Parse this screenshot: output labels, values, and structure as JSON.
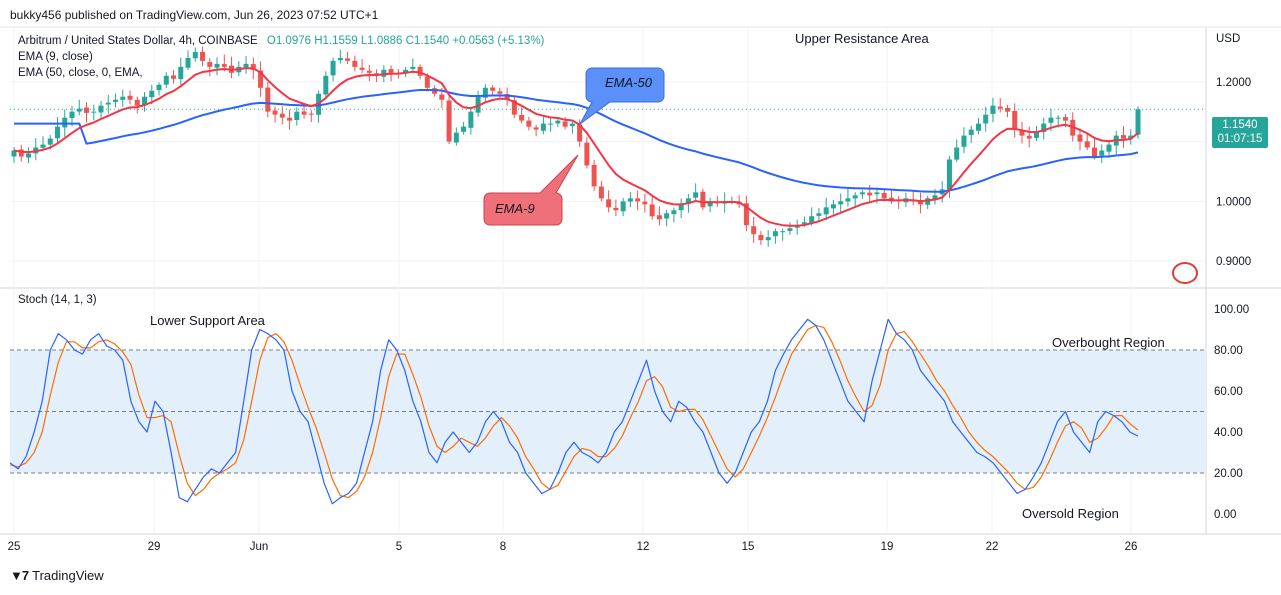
{
  "header": {
    "publisher": "bukky456 published on TradingView.com, Jun 26, 2023 07:52 UTC+1"
  },
  "legend": {
    "symbol": "Arbitrum / United States Dollar, 4h, COINBASE",
    "ohlc": "O1.0976  H1.1559  L1.0886  C1.1540  +0.0563 (+5.13%)",
    "ema9": "EMA (9, close)",
    "ema50": "EMA (50, close, 0, EMA,",
    "stoch": "Stoch (14, 1, 3)"
  },
  "currency": "USD",
  "last_price": "1.1540",
  "countdown": "01:07:15",
  "annotations": {
    "upper_resistance": "Upper Resistance Area",
    "lower_support": "Lower Support Area",
    "overbought": "Overbought Region",
    "oversold": "Oversold Region",
    "ema50_callout": "EMA-50",
    "ema9_callout": "EMA-9"
  },
  "footer": {
    "brand": "TradingView",
    "logo_icon": "tradingview-logo-icon"
  },
  "colors": {
    "bull": "#26a69a",
    "bear": "#ef5350",
    "ema9": "#f23645",
    "ema50": "#2962ff",
    "stoch_k": "#2962ff",
    "stoch_d": "#ff6d00",
    "ema50_callout_bg": "#5b8ff9",
    "ema9_callout_bg": "#f0707a",
    "stoch_band": "#e3f0fb"
  },
  "chart_data": {
    "type": "candlestick",
    "title": "Arbitrum / United States Dollar, 4h, COINBASE",
    "price_axis": {
      "label": "USD",
      "ticks": [
        "1.2000",
        "1.1000",
        "1.0000",
        "0.9000"
      ],
      "range": [
        0.86,
        1.29
      ]
    },
    "time_axis": {
      "ticks": [
        "25",
        "29",
        "Jun",
        "5",
        "8",
        "12",
        "15",
        "19",
        "22",
        "26"
      ]
    },
    "candles_close": [
      1.085,
      1.075,
      1.08,
      1.09,
      1.095,
      1.105,
      1.125,
      1.14,
      1.15,
      1.155,
      1.148,
      1.15,
      1.16,
      1.165,
      1.17,
      1.175,
      1.17,
      1.16,
      1.175,
      1.185,
      1.195,
      1.21,
      1.205,
      1.225,
      1.24,
      1.25,
      1.235,
      1.225,
      1.23,
      1.225,
      1.215,
      1.225,
      1.23,
      1.22,
      1.19,
      1.15,
      1.145,
      1.14,
      1.135,
      1.15,
      1.145,
      1.145,
      1.18,
      1.21,
      1.235,
      1.24,
      1.235,
      1.225,
      1.22,
      1.215,
      1.21,
      1.22,
      1.215,
      1.215,
      1.22,
      1.225,
      1.21,
      1.19,
      1.18,
      1.17,
      1.1,
      1.115,
      1.125,
      1.15,
      1.175,
      1.19,
      1.185,
      1.18,
      1.17,
      1.145,
      1.135,
      1.125,
      1.12,
      1.13,
      1.13,
      1.135,
      1.125,
      1.13,
      1.1,
      1.06,
      1.025,
      1.005,
      0.99,
      0.985,
      1.0,
      1.005,
      1.0,
      0.995,
      0.975,
      0.97,
      0.98,
      0.985,
      0.995,
      1.005,
      1.015,
      0.99,
      1.0,
      0.998,
      1.0,
      1.0,
      0.995,
      0.96,
      0.945,
      0.935,
      0.94,
      0.95,
      0.95,
      0.955,
      0.96,
      0.965,
      0.975,
      0.98,
      0.99,
      0.995,
      1.0,
      1.005,
      1.01,
      1.015,
      1.01,
      1.015,
      1.005,
      1.0,
      1.0,
      1.005,
      1.0,
      0.995,
      1.005,
      1.01,
      1.02,
      1.07,
      1.09,
      1.11,
      1.12,
      1.13,
      1.145,
      1.16,
      1.155,
      1.15,
      1.12,
      1.11,
      1.105,
      1.115,
      1.13,
      1.14,
      1.14,
      1.135,
      1.11,
      1.1,
      1.09,
      1.075,
      1.085,
      1.095,
      1.11,
      1.105,
      1.11,
      1.154
    ],
    "stoch": {
      "name": "Stoch (14, 1, 3)",
      "y_ticks": [
        "100.00",
        "80.00",
        "60.00",
        "40.00",
        "20.00",
        "0.00"
      ],
      "band": [
        20,
        80
      ],
      "midline": 50,
      "k": [
        25,
        22,
        28,
        40,
        55,
        80,
        88,
        85,
        80,
        78,
        85,
        88,
        82,
        80,
        75,
        55,
        45,
        40,
        55,
        50,
        30,
        8,
        6,
        12,
        18,
        22,
        20,
        25,
        30,
        55,
        80,
        90,
        88,
        85,
        80,
        60,
        50,
        45,
        30,
        15,
        5,
        8,
        10,
        15,
        30,
        45,
        70,
        85,
        80,
        70,
        55,
        45,
        30,
        25,
        35,
        40,
        35,
        30,
        35,
        45,
        50,
        45,
        35,
        30,
        20,
        15,
        10,
        12,
        20,
        30,
        35,
        30,
        28,
        25,
        30,
        40,
        45,
        55,
        65,
        75,
        60,
        50,
        45,
        55,
        52,
        45,
        40,
        30,
        20,
        15,
        20,
        30,
        40,
        45,
        55,
        70,
        78,
        85,
        90,
        95,
        92,
        85,
        75,
        65,
        55,
        50,
        45,
        65,
        80,
        95,
        88,
        85,
        80,
        70,
        65,
        60,
        55,
        45,
        40,
        35,
        30,
        28,
        25,
        20,
        15,
        10,
        12,
        18,
        25,
        35,
        45,
        50,
        40,
        35,
        30,
        45,
        50,
        48,
        45,
        40,
        38
      ],
      "d": [
        24,
        23,
        25,
        30,
        40,
        58,
        74,
        84,
        84,
        81,
        81,
        84,
        85,
        83,
        79,
        73,
        58,
        47,
        47,
        48,
        45,
        29,
        15,
        9,
        12,
        17,
        20,
        22,
        25,
        36,
        55,
        75,
        86,
        88,
        84,
        75,
        63,
        52,
        42,
        30,
        17,
        9,
        8,
        11,
        18,
        30,
        47,
        67,
        78,
        78,
        68,
        57,
        43,
        33,
        30,
        33,
        37,
        35,
        33,
        37,
        43,
        47,
        43,
        37,
        28,
        22,
        15,
        12,
        14,
        21,
        28,
        32,
        31,
        28,
        28,
        32,
        38,
        47,
        55,
        65,
        67,
        62,
        52,
        50,
        51,
        51,
        46,
        38,
        30,
        22,
        18,
        22,
        30,
        38,
        47,
        57,
        68,
        78,
        84,
        90,
        92,
        91,
        84,
        75,
        65,
        57,
        50,
        53,
        63,
        80,
        88,
        89,
        84,
        78,
        72,
        65,
        60,
        53,
        47,
        40,
        35,
        31,
        28,
        24,
        20,
        15,
        12,
        13,
        18,
        26,
        35,
        43,
        45,
        42,
        35,
        37,
        42,
        48,
        48,
        44,
        41
      ]
    },
    "ema9_label": "EMA (9, close)",
    "ema50_label": "EMA (50, close, 0, EMA,"
  }
}
